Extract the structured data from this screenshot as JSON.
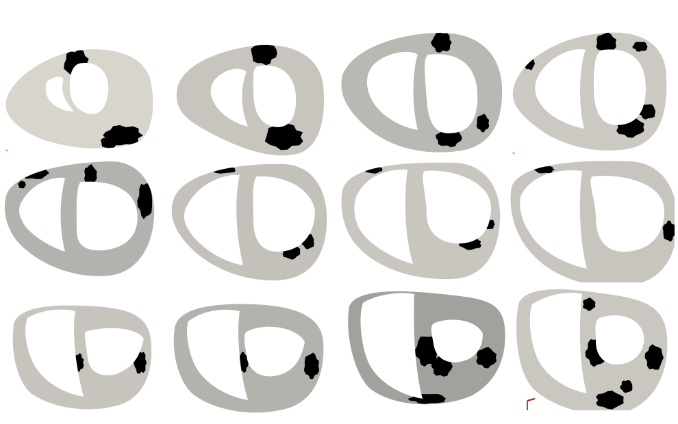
{
  "figure": {
    "rows": 3,
    "columns": 4,
    "slices": [
      {
        "row": 1,
        "col": 1,
        "tissue_color": "#d8d5cc"
      },
      {
        "row": 1,
        "col": 2,
        "tissue_color": "#c7c5bd"
      },
      {
        "row": 1,
        "col": 3,
        "tissue_color": "#b9b8b3"
      },
      {
        "row": 1,
        "col": 4,
        "tissue_color": "#cbc9c1"
      },
      {
        "row": 2,
        "col": 1,
        "tissue_color": "#b3b2ae"
      },
      {
        "row": 2,
        "col": 2,
        "tissue_color": "#c3c1ba"
      },
      {
        "row": 2,
        "col": 3,
        "tissue_color": "#c8c6bf"
      },
      {
        "row": 2,
        "col": 4,
        "tissue_color": "#c7c5be"
      },
      {
        "row": 3,
        "col": 1,
        "tissue_color": "#c6c4bd"
      },
      {
        "row": 3,
        "col": 2,
        "tissue_color": "#b3b2ad"
      },
      {
        "row": 3,
        "col": 3,
        "tissue_color": "#a2a19d"
      },
      {
        "row": 3,
        "col": 4,
        "tissue_color": "#c9c7c0"
      }
    ],
    "scar_color": "#000000",
    "background_color": "#ffffff"
  }
}
